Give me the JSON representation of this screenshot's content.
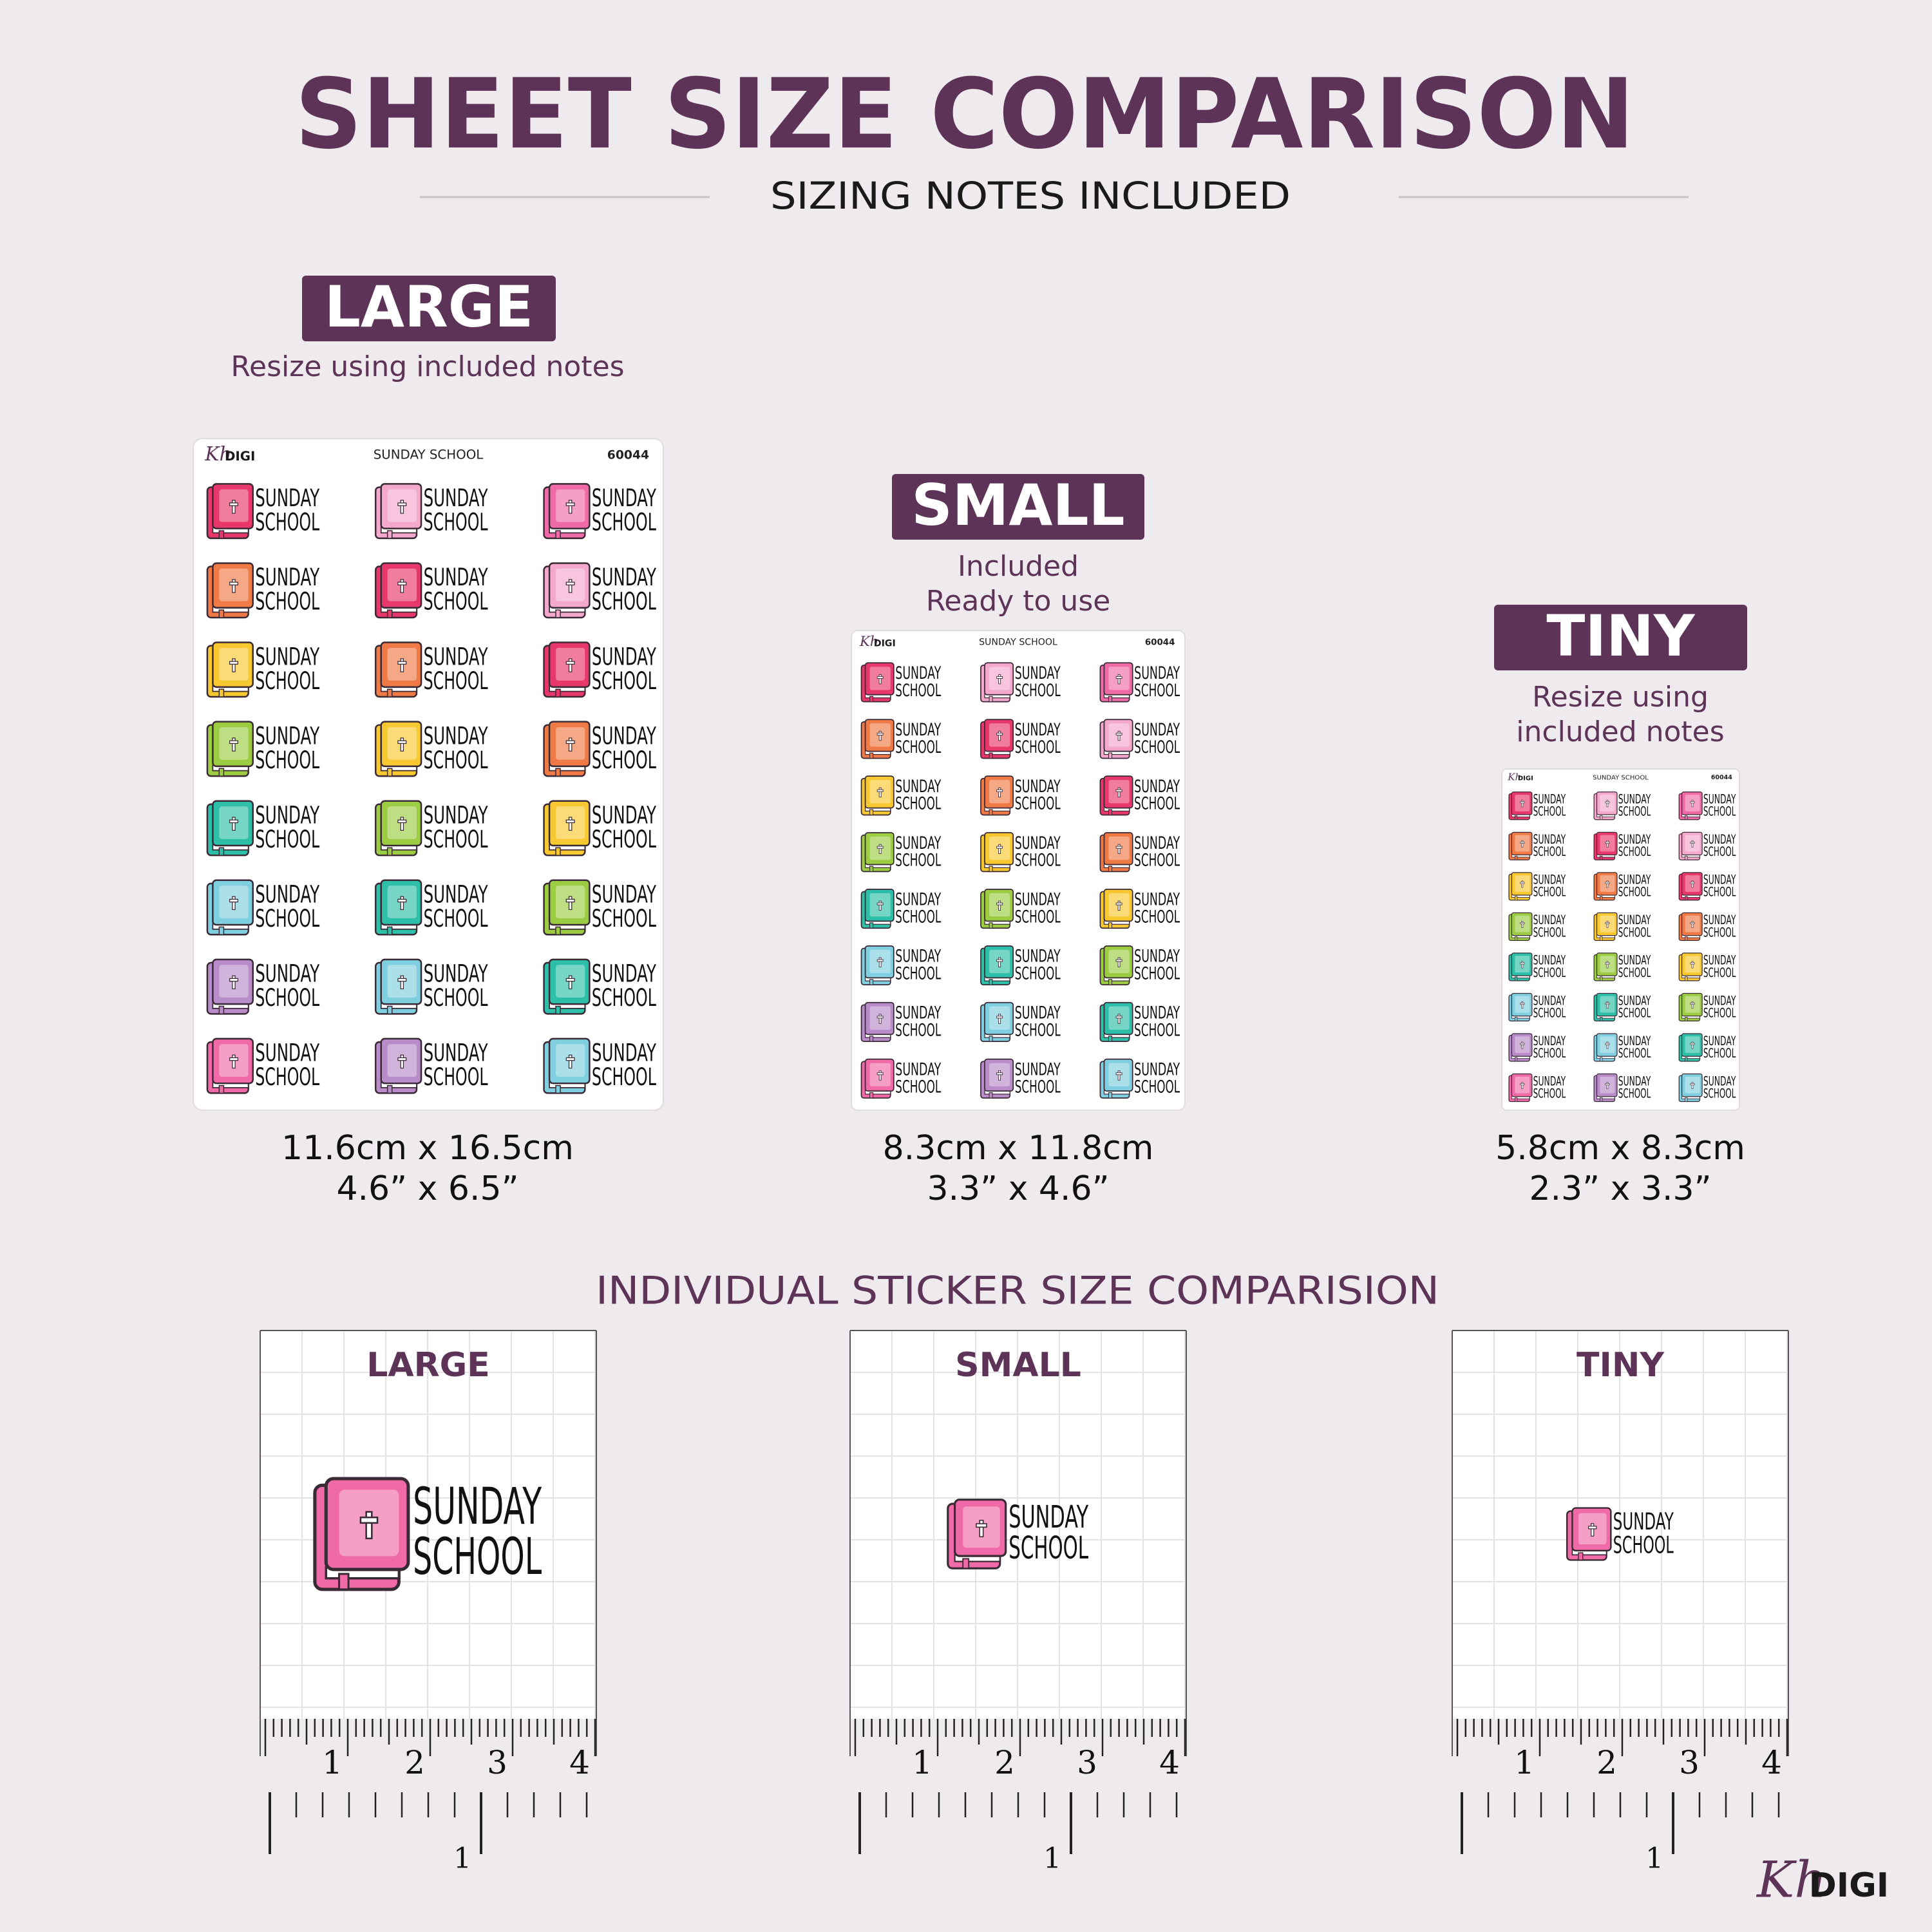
{
  "header": {
    "title": "SHEET SIZE COMPARISON",
    "subtitle": "SIZING NOTES INCLUDED"
  },
  "brand": {
    "kh": "Kh",
    "digi": "DIGI"
  },
  "sheet": {
    "name": "SUNDAY SCHOOL",
    "code": "60044",
    "sticker": {
      "line1": "SUNDAY",
      "line2": "SCHOOL"
    }
  },
  "sizes": [
    {
      "label": "LARGE",
      "notes": [
        "Resize using included notes"
      ],
      "metric": "11.6cm x 16.5cm",
      "imperial": "4.6” x 6.5”"
    },
    {
      "label": "SMALL",
      "notes": [
        "Included",
        "Ready to use"
      ],
      "metric": "8.3cm x 11.8cm",
      "imperial": "3.3” x 4.6”"
    },
    {
      "label": "TINY",
      "notes": [
        "Resize using",
        "included notes"
      ],
      "metric": "5.8cm x 8.3cm",
      "imperial": "2.3” x 3.3”"
    }
  ],
  "comparison": {
    "title": "INDIVIDUAL STICKER SIZE COMPARISION",
    "cards": [
      {
        "label": "LARGE"
      },
      {
        "label": "SMALL"
      },
      {
        "label": "TINY"
      }
    ],
    "ruler": {
      "cm_labels": [
        "1",
        "2",
        "3",
        "4"
      ],
      "inch_label": "1"
    }
  }
}
